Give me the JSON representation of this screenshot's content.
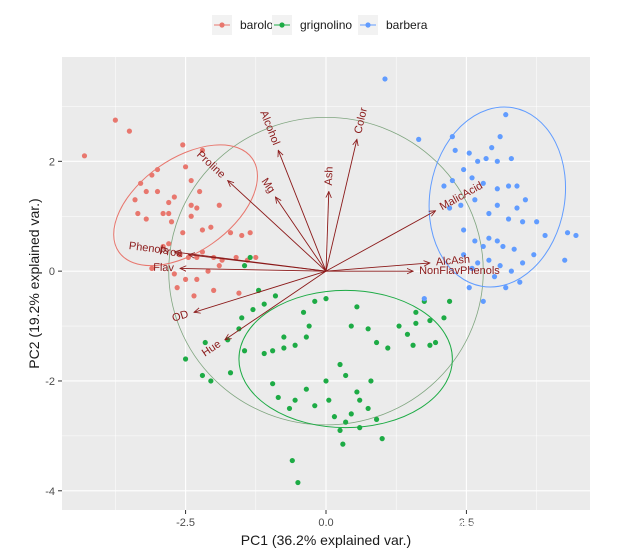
{
  "chart_data": {
    "type": "scatter",
    "xlabel": "PC1 (36.2% explained var.)",
    "ylabel": "PC2 (19.2% explained var.)",
    "xlim": [
      -4.7,
      4.7
    ],
    "ylim": [
      -4.35,
      3.9
    ],
    "x_ticks": [
      -2.5,
      0.0,
      2.5
    ],
    "x_tick_labels": [
      "-2.5",
      "0.0",
      "2.5"
    ],
    "y_ticks": [
      -4,
      -2,
      0,
      2
    ],
    "y_tick_labels": [
      "-4",
      "-2",
      "0",
      "2"
    ],
    "grid": true,
    "legend_position": "top",
    "series": [
      {
        "name": "barolo",
        "color": "#E8776E",
        "points": [
          [
            -4.3,
            2.1
          ],
          [
            -3.75,
            2.75
          ],
          [
            -3.5,
            2.55
          ],
          [
            -3.3,
            1.6
          ],
          [
            -3.4,
            1.3
          ],
          [
            -3.35,
            1.05
          ],
          [
            -3.2,
            1.45
          ],
          [
            -3.2,
            0.95
          ],
          [
            -3.1,
            1.75
          ],
          [
            -3.0,
            1.45
          ],
          [
            -3.0,
            1.85
          ],
          [
            -2.9,
            1.05
          ],
          [
            -2.8,
            1.25
          ],
          [
            -2.75,
            0.9
          ],
          [
            -2.7,
            1.35
          ],
          [
            -2.55,
            2.3
          ],
          [
            -2.5,
            1.9
          ],
          [
            -2.4,
            1.2
          ],
          [
            -2.4,
            1.65
          ],
          [
            -2.3,
            1.15
          ],
          [
            -2.25,
            1.45
          ],
          [
            -2.2,
            0.75
          ],
          [
            -2.05,
            0.8
          ],
          [
            -1.7,
            0.7
          ],
          [
            -1.5,
            0.65
          ],
          [
            -1.35,
            0.7
          ],
          [
            -2.9,
            0.45
          ],
          [
            -2.8,
            0.5
          ],
          [
            -2.6,
            0.3
          ],
          [
            -2.45,
            0.25
          ],
          [
            -2.3,
            0.25
          ],
          [
            -2.2,
            0.35
          ],
          [
            -2.0,
            0.25
          ],
          [
            -1.85,
            0.2
          ],
          [
            -1.6,
            0.25
          ],
          [
            -1.4,
            0.2
          ],
          [
            -1.25,
            0.25
          ],
          [
            -3.1,
            0.05
          ],
          [
            -2.7,
            -0.05
          ],
          [
            -2.5,
            -0.15
          ],
          [
            -2.3,
            -0.15
          ],
          [
            -2.1,
            0.0
          ],
          [
            -1.9,
            0.1
          ],
          [
            -2.65,
            -0.3
          ],
          [
            -2.35,
            -0.45
          ],
          [
            -2.0,
            -0.35
          ],
          [
            -1.55,
            -0.4
          ],
          [
            -2.4,
            1.0
          ],
          [
            -1.9,
            1.2
          ],
          [
            -2.2,
            2.2
          ],
          [
            -2.8,
            1.05
          ],
          [
            -2.55,
            0.7
          ]
        ]
      },
      {
        "name": "grignolino",
        "color": "#1DAB45",
        "points": [
          [
            -2.15,
            -1.3
          ],
          [
            -1.75,
            -1.25
          ],
          [
            -1.5,
            -0.85
          ],
          [
            -1.3,
            -0.7
          ],
          [
            -1.1,
            -0.6
          ],
          [
            -0.9,
            -0.45
          ],
          [
            -0.4,
            -0.75
          ],
          [
            -0.2,
            -0.55
          ],
          [
            -1.2,
            -0.35
          ],
          [
            -1.35,
            0.25
          ],
          [
            -2.5,
            -1.6
          ],
          [
            -2.2,
            -1.9
          ],
          [
            -2.05,
            -2.0
          ],
          [
            -1.7,
            -1.85
          ],
          [
            -1.45,
            -1.45
          ],
          [
            -1.1,
            -1.5
          ],
          [
            -0.95,
            -1.45
          ],
          [
            -0.75,
            -1.4
          ],
          [
            -0.55,
            -1.35
          ],
          [
            -0.35,
            -1.2
          ],
          [
            0.25,
            -1.7
          ],
          [
            0.0,
            -2.0
          ],
          [
            -0.35,
            -2.15
          ],
          [
            -0.55,
            -2.35
          ],
          [
            -0.85,
            -2.3
          ],
          [
            -0.95,
            -2.05
          ],
          [
            -0.65,
            -2.5
          ],
          [
            -0.2,
            -2.45
          ],
          [
            0.05,
            -2.35
          ],
          [
            0.15,
            -2.65
          ],
          [
            0.25,
            -2.9
          ],
          [
            0.45,
            -2.6
          ],
          [
            0.55,
            -2.2
          ],
          [
            0.35,
            -1.9
          ],
          [
            0.6,
            -2.35
          ],
          [
            0.8,
            -2.0
          ],
          [
            0.75,
            -2.5
          ],
          [
            0.9,
            -2.7
          ],
          [
            1.0,
            -3.05
          ],
          [
            0.35,
            -2.75
          ],
          [
            0.6,
            -2.85
          ],
          [
            0.45,
            -1.0
          ],
          [
            0.55,
            -0.65
          ],
          [
            0.75,
            -1.05
          ],
          [
            0.9,
            -1.3
          ],
          [
            1.1,
            -1.4
          ],
          [
            1.3,
            -1.0
          ],
          [
            1.45,
            -1.15
          ],
          [
            1.6,
            -0.75
          ],
          [
            1.75,
            -0.55
          ],
          [
            1.6,
            -0.95
          ],
          [
            1.55,
            -1.35
          ],
          [
            1.85,
            -0.9
          ],
          [
            1.85,
            -1.35
          ],
          [
            1.95,
            -1.3
          ],
          [
            2.1,
            -0.85
          ],
          [
            2.2,
            -0.55
          ],
          [
            0.0,
            -0.5
          ],
          [
            -0.3,
            -1.0
          ],
          [
            -1.45,
            0.1
          ],
          [
            -0.6,
            -3.45
          ],
          [
            -0.5,
            -3.85
          ],
          [
            0.3,
            -3.15
          ],
          [
            -0.75,
            -1.2
          ],
          [
            -1.55,
            -1.05
          ]
        ]
      },
      {
        "name": "barbera",
        "color": "#619CFF",
        "points": [
          [
            1.05,
            3.5
          ],
          [
            1.65,
            2.4
          ],
          [
            2.25,
            2.45
          ],
          [
            2.3,
            2.2
          ],
          [
            2.55,
            2.15
          ],
          [
            2.7,
            2.0
          ],
          [
            2.85,
            2.05
          ],
          [
            2.95,
            2.25
          ],
          [
            3.05,
            2.0
          ],
          [
            3.1,
            2.45
          ],
          [
            3.2,
            2.85
          ],
          [
            3.3,
            2.05
          ],
          [
            2.45,
            1.85
          ],
          [
            2.6,
            1.7
          ],
          [
            2.8,
            1.6
          ],
          [
            3.05,
            1.5
          ],
          [
            3.25,
            1.55
          ],
          [
            3.4,
            1.55
          ],
          [
            2.25,
            1.65
          ],
          [
            2.1,
            1.55
          ],
          [
            2.2,
            1.15
          ],
          [
            2.4,
            1.2
          ],
          [
            2.65,
            1.3
          ],
          [
            2.9,
            1.05
          ],
          [
            3.05,
            1.2
          ],
          [
            3.25,
            0.95
          ],
          [
            3.4,
            1.15
          ],
          [
            3.55,
            1.3
          ],
          [
            3.5,
            0.9
          ],
          [
            3.75,
            0.9
          ],
          [
            2.45,
            0.75
          ],
          [
            2.65,
            0.55
          ],
          [
            2.8,
            0.45
          ],
          [
            2.9,
            0.6
          ],
          [
            3.05,
            0.55
          ],
          [
            3.15,
            0.45
          ],
          [
            3.35,
            0.4
          ],
          [
            3.5,
            0.15
          ],
          [
            3.7,
            0.3
          ],
          [
            3.9,
            0.65
          ],
          [
            4.3,
            0.7
          ],
          [
            4.45,
            0.65
          ],
          [
            4.25,
            0.2
          ],
          [
            2.45,
            0.3
          ],
          [
            2.6,
            0.05
          ],
          [
            2.7,
            0.15
          ],
          [
            2.9,
            0.2
          ],
          [
            3.1,
            0.1
          ],
          [
            3.3,
            0.0
          ],
          [
            3.45,
            -0.2
          ],
          [
            3.2,
            -0.3
          ],
          [
            2.8,
            -0.55
          ],
          [
            3.0,
            -0.1
          ],
          [
            2.55,
            -0.3
          ],
          [
            1.75,
            -0.5
          ]
        ]
      }
    ],
    "loadings": [
      {
        "label": "Alcohol",
        "x": -0.85,
        "y": 2.2
      },
      {
        "label": "MalicAcid",
        "x": 1.95,
        "y": 1.1
      },
      {
        "label": "Ash",
        "x": 0.05,
        "y": 1.45
      },
      {
        "label": "AlcAsh",
        "x": 1.85,
        "y": 0.15
      },
      {
        "label": "Mg",
        "x": -0.9,
        "y": 1.35
      },
      {
        "label": "Phenols",
        "x": -2.7,
        "y": 0.35
      },
      {
        "label": "Flav",
        "x": -2.6,
        "y": 0.05
      },
      {
        "label": "NonFlavPhenols",
        "x": 1.55,
        "y": 0.0
      },
      {
        "label": "Proa",
        "x": -2.45,
        "y": 0.3
      },
      {
        "label": "Color",
        "x": 0.55,
        "y": 2.4
      },
      {
        "label": "Hue",
        "x": -1.8,
        "y": -1.25
      },
      {
        "label": "OD",
        "x": -2.35,
        "y": -0.75
      },
      {
        "label": "Proline",
        "x": -1.75,
        "y": 1.65
      }
    ],
    "ellipses": [
      {
        "series": "barolo",
        "cx": -2.5,
        "cy": 1.2,
        "rx": 1.45,
        "ry": 0.85,
        "angle": -35
      },
      {
        "series": "grignolino",
        "cx": 0.35,
        "cy": -1.6,
        "rx": 1.9,
        "ry": 1.25,
        "angle": 0
      },
      {
        "series": "barbera",
        "cx": 3.05,
        "cy": 1.35,
        "rx": 1.2,
        "ry": 1.65,
        "angle": 10
      }
    ],
    "correlation_circle": {
      "cx": 0.0,
      "cy": 0.0,
      "r": 2.8
    }
  },
  "legend": {
    "items": [
      {
        "label": "barolo",
        "color": "#E8776E"
      },
      {
        "label": "grignolino",
        "color": "#1DAB45"
      },
      {
        "label": "barbera",
        "color": "#619CFF"
      }
    ]
  },
  "watermark": "知乎 @踩雷小能手123",
  "colors": {
    "panel": "#EBEBEB",
    "grid": "#FFFFFF",
    "arrow": "#8B1A1A",
    "circle": "#7FA57F"
  }
}
